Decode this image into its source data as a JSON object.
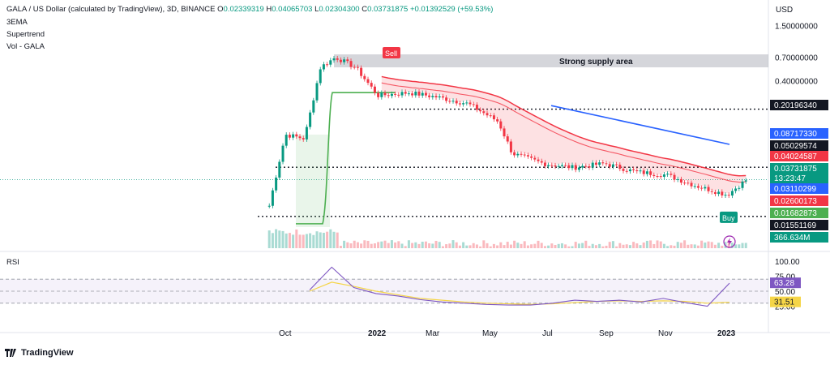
{
  "header": {
    "symbol": "GALA / US Dollar (calculated by TradingView), 3D, BINANCE",
    "open_label": "O",
    "open": "0.02339319",
    "high_label": "H",
    "high": "0.04065703",
    "low_label": "L",
    "low": "0.02304300",
    "close_label": "C",
    "close": "0.03731875",
    "change": "+0.01392529 (+59.53%)"
  },
  "indicators": [
    "3EMA",
    "Supertrend",
    "Vol - GALA"
  ],
  "currency": "USD",
  "annotations": {
    "supply_area": "Strong supply area",
    "sell": "Sell",
    "buy": "Buy"
  },
  "brand": "TradingView",
  "colors": {
    "up": "#089981",
    "down": "#f23645",
    "ema": "#f23645",
    "supertrend_up": "#4caf50",
    "trendline": "#2962ff",
    "rsi": "#7e57c2",
    "rsi_ma": "#f5d547"
  },
  "chart_data": [
    {
      "type": "candlestick",
      "title": "GALA / US Dollar, 3D, BINANCE",
      "y_scale": "log",
      "y_ticks": [
        "1.50000000",
        "0.70000000",
        "0.40000000"
      ],
      "x_ticks": [
        "Oct",
        "2022",
        "Mar",
        "May",
        "Jul",
        "Sep",
        "Nov",
        "2023"
      ],
      "price_labels": [
        {
          "text": "0.20196340",
          "style": "black"
        },
        {
          "text": "0.08717330",
          "style": "blue"
        },
        {
          "text": "0.05029574",
          "style": "black"
        },
        {
          "text": "0.04024587",
          "style": "red"
        },
        {
          "text": "0.03731875",
          "style": "teal"
        },
        {
          "text": "13:23:47",
          "style": "teal"
        },
        {
          "text": "0.03110299",
          "style": "blue"
        },
        {
          "text": "0.02600173",
          "style": "red"
        },
        {
          "text": "0.01682873",
          "style": "green"
        },
        {
          "text": "0.01551169",
          "style": "black"
        },
        {
          "text": "366.634M",
          "style": "teal"
        }
      ],
      "horizontal_levels": [
        0.2019634,
        0.05029574,
        0.01551169
      ],
      "supply_zone": [
        0.55,
        0.75
      ],
      "series": [
        {
          "name": "price",
          "x": [
            "2021-09-15",
            "2021-10-01",
            "2021-10-20",
            "2021-11-05",
            "2021-11-20",
            "2021-12-10",
            "2022-01-01",
            "2022-02-01",
            "2022-03-01",
            "2022-04-01",
            "2022-05-01",
            "2022-05-15",
            "2022-06-15",
            "2022-07-15",
            "2022-08-15",
            "2022-09-15",
            "2022-10-15",
            "2022-11-15",
            "2022-12-15",
            "2023-01-03"
          ],
          "y": [
            0.02,
            0.11,
            0.1,
            0.55,
            0.7,
            0.55,
            0.28,
            0.3,
            0.27,
            0.23,
            0.15,
            0.07,
            0.055,
            0.05,
            0.055,
            0.045,
            0.042,
            0.032,
            0.026,
            0.0373
          ]
        }
      ]
    },
    {
      "type": "line",
      "title": "RSI",
      "y_ticks": [
        "100.00",
        "75.00",
        "50.00",
        "25.00"
      ],
      "ylim": [
        0,
        100
      ],
      "bands": [
        30,
        70
      ],
      "value_labels": [
        "63.28",
        "31.51"
      ],
      "series": [
        {
          "name": "RSI",
          "values": [
            52,
            90,
            56,
            46,
            42,
            36,
            32,
            30,
            28,
            27,
            27,
            30,
            35,
            33,
            35,
            32,
            38,
            31,
            25,
            63.28
          ]
        },
        {
          "name": "RSI MA",
          "values": [
            50,
            65,
            58,
            50,
            44,
            38,
            35,
            32,
            30,
            29,
            28,
            29,
            31,
            33,
            34,
            33,
            34,
            33,
            30,
            31.51
          ]
        }
      ]
    }
  ]
}
